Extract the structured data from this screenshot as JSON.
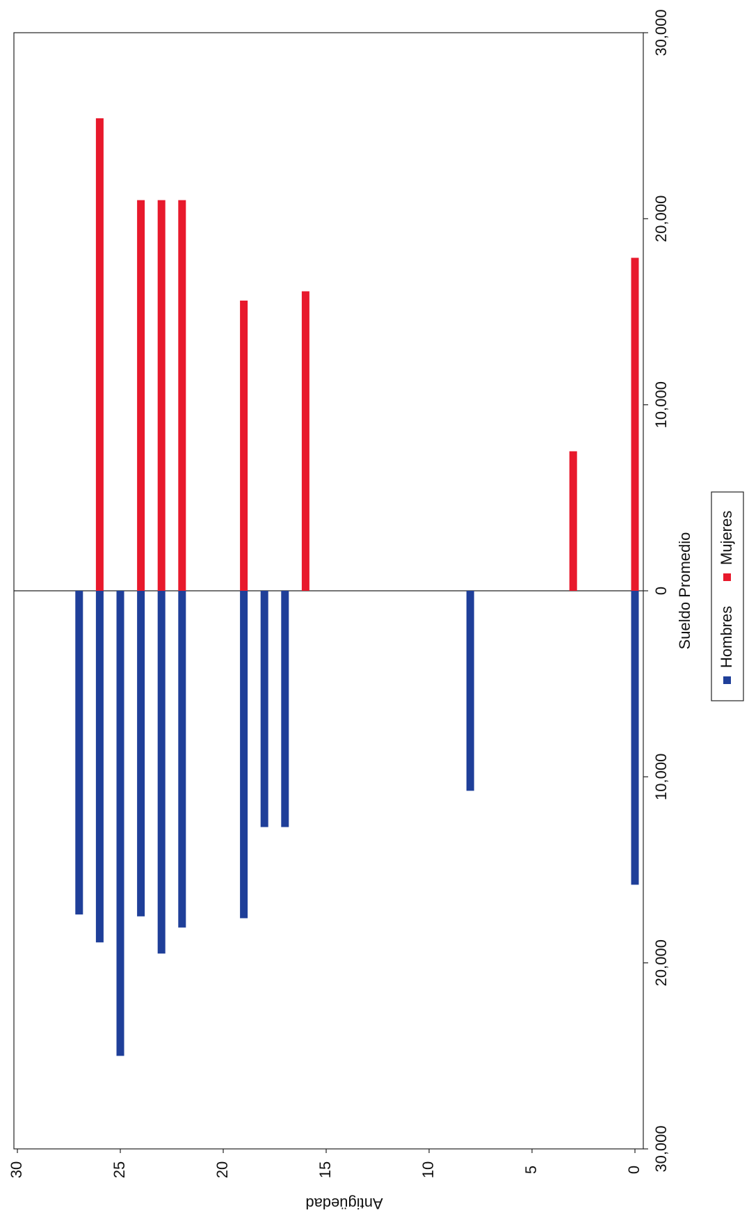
{
  "chart_data": {
    "type": "bar",
    "x_label": "Antigüedad",
    "y_label": "Sueldo Promedio",
    "x": [
      0,
      3,
      8,
      16,
      17,
      18,
      19,
      22,
      23,
      24,
      25,
      26,
      27
    ],
    "series": [
      {
        "name": "Hombres",
        "color": "#1f3f99",
        "values": [
          -15800,
          null,
          -10750,
          null,
          -12700,
          -12700,
          -17600,
          -18100,
          -19500,
          -17500,
          -25000,
          -18900,
          -17400
        ]
      },
      {
        "name": "Mujeres",
        "color": "#e8192c",
        "values": [
          17900,
          7500,
          null,
          16100,
          null,
          null,
          15600,
          21000,
          21000,
          21000,
          null,
          25400,
          null
        ]
      }
    ],
    "xlim": [
      0,
      30
    ],
    "xticks": [
      0,
      5,
      10,
      15,
      20,
      25,
      30
    ],
    "ylim": [
      -30000,
      30000
    ],
    "yticks": [
      {
        "value": -30000,
        "label": "30,000"
      },
      {
        "value": -20000,
        "label": "20,000"
      },
      {
        "value": -10000,
        "label": "10,000"
      },
      0,
      {
        "value": 10000,
        "label": "10,000"
      },
      {
        "value": 20000,
        "label": "20,000"
      },
      {
        "value": 30000,
        "label": "30,000"
      }
    ]
  }
}
